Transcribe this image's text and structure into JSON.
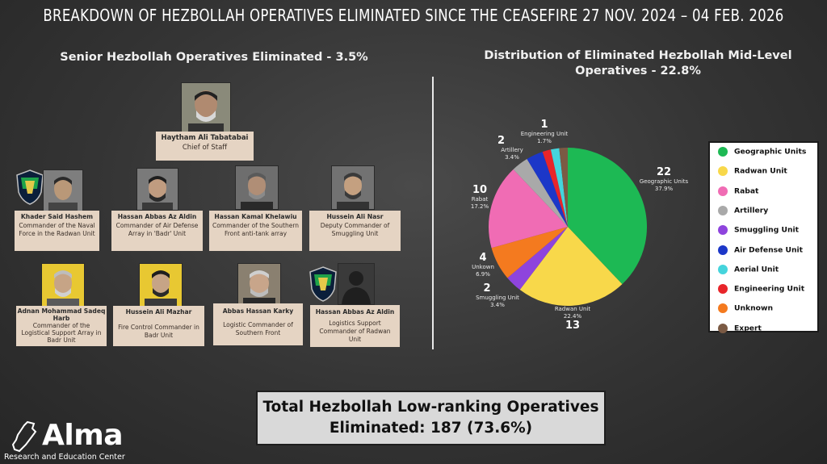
{
  "title": "BREAKDOWN OF HEZBOLLAH OPERATIVES ELIMINATED SINCE THE CEASEFIRE 27 NOV. 2024 – 04 FEB. 2026",
  "senior": {
    "heading": "Senior Hezbollah Operatives Eliminated - 3.5%",
    "people": [
      {
        "name": "Haytham Ali Tabatabai",
        "role": "Chief of Staff"
      },
      {
        "name": "Khader Said Hashem",
        "role": "Commander of the Naval Force in the Radwan Unit"
      },
      {
        "name": "Hassan Abbas Az Aldin",
        "role": "Commander of Air Defense Array in 'Badr' Unit"
      },
      {
        "name": "Hassan Kamal Khelawiu",
        "role": "Commander of the Southern Front anti-tank array"
      },
      {
        "name": "Hussein Ali Nasr",
        "role": "Deputy Commander of Smuggling Unit"
      },
      {
        "name": "Adnan Mohammad Sadeq Harb",
        "role": "Commander of the Logistical Support Array in Badr Unit"
      },
      {
        "name": "Hussein Ali Mazhar",
        "role": "Fire Control Commander in Badr Unit"
      },
      {
        "name": "Abbas Hassan Karky",
        "role": "Logistic Commander of Southern Front"
      },
      {
        "name": "Hassan Abbas Az Aldin",
        "role": "Logistics Support Commander of Radwan Unit"
      }
    ]
  },
  "mid": {
    "heading": "Distribution of Eliminated Hezbollah Mid-Level Operatives - 22.8%"
  },
  "chart_data": {
    "type": "pie",
    "title": "Distribution of Eliminated Hezbollah Mid-Level Operatives - 22.8%",
    "slices": [
      {
        "label": "Geographic Units",
        "count": "22",
        "pct": "37.9%",
        "value": 22,
        "color": "#1db954"
      },
      {
        "label": "Radwan Unit",
        "count": "13",
        "pct": "22.4%",
        "value": 13,
        "color": "#f8d84a"
      },
      {
        "label": "Smuggling Unit",
        "count": "2",
        "pct": "3.4%",
        "value": 2,
        "color": "#8e44dd"
      },
      {
        "label": "Unkown",
        "count": "4",
        "pct": "6.9%",
        "value": 4,
        "color": "#f47a1f"
      },
      {
        "label": "Rabat",
        "count": "10",
        "pct": "17.2%",
        "value": 10,
        "color": "#f06cb4"
      },
      {
        "label": "Artillery",
        "count": "2",
        "pct": "3.4%",
        "value": 2,
        "color": "#a9a9a9"
      },
      {
        "label": "Air Defense Unit",
        "count": "",
        "pct": "",
        "value": 2,
        "color": "#1c37c8"
      },
      {
        "label": "Engineering Unit",
        "count": "1",
        "pct": "1.7%",
        "value": 1,
        "color": "#e8252a"
      },
      {
        "label": "Aerial Unit",
        "count": "",
        "pct": "",
        "value": 1,
        "color": "#45d4dc"
      },
      {
        "label": "Expert",
        "count": "",
        "pct": "",
        "value": 1,
        "color": "#7b5a44"
      }
    ],
    "legend": [
      {
        "label": "Geographic Units",
        "color": "#1db954"
      },
      {
        "label": "Radwan Unit",
        "color": "#f8d84a"
      },
      {
        "label": "Rabat",
        "color": "#f06cb4"
      },
      {
        "label": "Artillery",
        "color": "#a9a9a9"
      },
      {
        "label": "Smuggling Unit",
        "color": "#8e44dd"
      },
      {
        "label": "Air Defense Unit",
        "color": "#1c37c8"
      },
      {
        "label": "Aerial Unit",
        "color": "#45d4dc"
      },
      {
        "label": "Engineering Unit",
        "color": "#e8252a"
      },
      {
        "label": "Unknown",
        "color": "#f47a1f"
      },
      {
        "label": "Expert",
        "color": "#7b5a44"
      }
    ],
    "legend_position": "right"
  },
  "total": {
    "line1": "Total Hezbollah Low-ranking Operatives",
    "line2": "Eliminated: 187 (73.6%)"
  },
  "logo": {
    "word": "Alma",
    "sub": "Research and Education Center"
  }
}
